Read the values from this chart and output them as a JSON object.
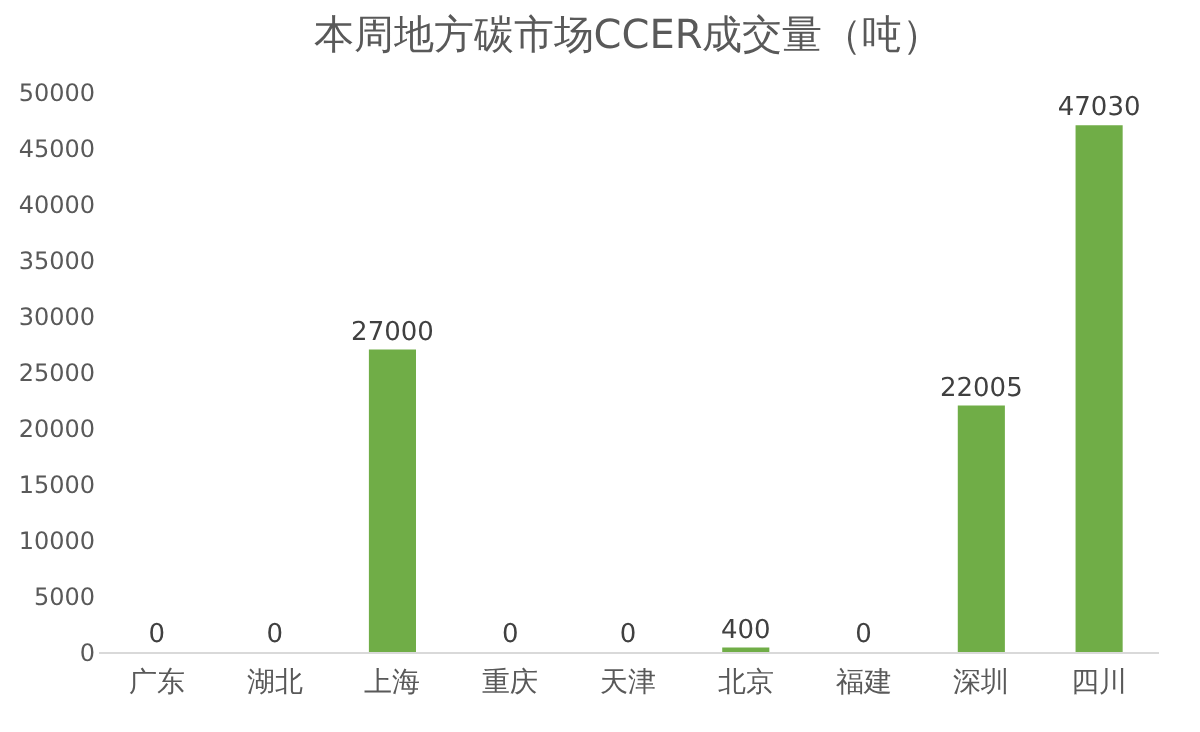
{
  "chart_data": {
    "type": "bar",
    "title": "本周地方碳市场CCER成交量（吨）",
    "categories": [
      "广东",
      "湖北",
      "上海",
      "重庆",
      "天津",
      "北京",
      "福建",
      "深圳",
      "四川"
    ],
    "values": [
      0,
      0,
      27000,
      0,
      0,
      400,
      0,
      22005,
      47030
    ],
    "color": "#70ad47",
    "ylim": [
      0,
      50000
    ],
    "yticks": [
      0,
      5000,
      10000,
      15000,
      20000,
      25000,
      30000,
      35000,
      40000,
      45000,
      50000
    ],
    "data_labels": true
  }
}
